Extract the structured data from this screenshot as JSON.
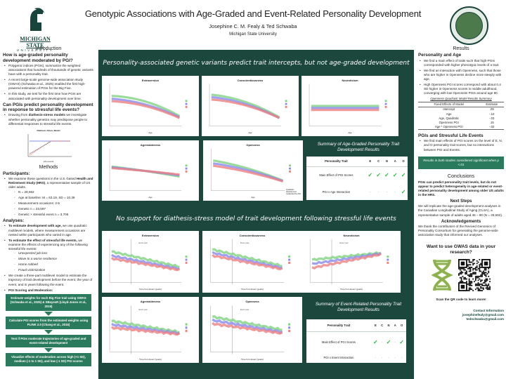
{
  "header": {
    "title": "Genotypic Associations with Age-Graded and Event-Related Personality Development",
    "authors": "Josephine C. M. Fealy & Ted Schwaba",
    "affiliation": "Michigan State University",
    "logo_text": "MICHIGAN STATE",
    "logo_sub": "UNIVERSITY"
  },
  "left": {
    "intro_title": "Introduction",
    "q1": "How is age-graded personality development moderated by PGI?",
    "q1_bullets": [
      "Polygenic indices (PGIs), summarize the weighted associations that hundreds of thousands of genetic variants have with a personality trait.",
      "A recent large-scale genome-wide association study (GWAS) (Schwaba et al., 2025) enabled the first high-powered estimation of PGIs for the Big Five.",
      "In this study, we test for the first time how PGIs are associated with personality development over time."
    ],
    "q2": "Can PGIs predict personality development in response to stressful life events?",
    "q2_pre": "Drawing from ",
    "q2_bold": "diathesis-stress models",
    "q2_post": " we investigate whether personality genetics may predispose people to differential responses to stressful life events.",
    "fig_title": "Diathesis-Stress Model",
    "fig_xlabel": "Life events",
    "methods_title": "Methods",
    "participants_title": "Participants:",
    "p_pre": "We examine these questions in the U.S.-based ",
    "p_bold": "Health and Retirement Study (HRS)",
    "p_post": ", a representative sample of US older adults.",
    "p_sub": [
      "N = 28,662",
      "Age at baseline: M = 63.19, SD = 10.39",
      "Measurement occasions: 2-5",
      "Genetic n = 23,597",
      "Genetic × stressful event n = 3,706"
    ],
    "analyses_title": "Analyses:",
    "a1_bold": "To estimate development with age,",
    "a1_post": " we use quadratic multilevel models, where measurement occasions are nested within participants who varied in age.",
    "a2_bold": "To estimate the effect of stressful life events,",
    "a2_post": " we examine the effects of experiencing any of the following stressful life events:",
    "events": [
      "Unexpected job loss",
      "Move to a worse residence",
      "Home robbed",
      "Fraud victimization"
    ],
    "a3": "We create a three-part multilevel model to estimate the trajectory of trait development before the event, the year of event, and in years following the event.",
    "a4_bold": "PGI Scoring and Moderation:",
    "flow": [
      "Estimate weights for each Big Five trait using GWAS (Schwaba et al., 2025) & SBayesR (Lloyd-Jones et al., 2019)",
      "Calculate PGI scores from the estimated weights using PLINK 2.0 (Chang et al., 2015)",
      "Test if PGIs moderate trajectories of age-graded and event-related development",
      "Visualize effects of moderation across high (+1 SD), medium (-1 to 1 SD), and low (-1 SD) PGI scores"
    ]
  },
  "center": {
    "banner1": "Personality-associated genetic variants predict trait intercepts, but not age-graded development",
    "banner2": "No support for diathesis-stress model of trait development following stressful life events",
    "age_charts": [
      "Extraversion",
      "Conscientiousness",
      "Neuroticism",
      "Agreeableness",
      "Openness"
    ],
    "event_charts": [
      "Extraversion",
      "Conscientiousness",
      "Neuroticism",
      "Agreeableness",
      "Openness"
    ],
    "age_xlabel": "Age",
    "event_xlabel": "Time from Event (years)",
    "event_annot": "Event year",
    "openness_note": "Quadratic development moderated by PGI",
    "summary1_title": "Summary of Age-Graded Personality Trait Development Results",
    "summary2_title": "Summary of Event-Related Personality Trait Development Results",
    "traits": [
      "E",
      "C",
      "N",
      "A",
      "O"
    ],
    "col_header": "Personality Trait",
    "table1": [
      {
        "label": "Main Effect of PGI Scores",
        "vals": [
          "✓",
          "✓",
          "✓",
          "✓",
          "✓"
        ]
      },
      {
        "label": "PGI x Age Interaction",
        "vals": [
          "-",
          "-",
          "-",
          "-",
          "✓"
        ]
      }
    ],
    "table2": [
      {
        "label": "Main Effect of PGI Scores",
        "vals": [
          "✓",
          "-",
          "✓",
          "-",
          "✓"
        ]
      },
      {
        "label": "PGI x Event Interaction",
        "vals": [
          "-",
          "-",
          "-",
          "-",
          "-"
        ]
      }
    ],
    "colors": {
      "high": "#7fd37f",
      "medium": "#8a8aee",
      "low": "#ee8080"
    }
  },
  "right": {
    "results_title": "Results",
    "pa_title": "Personality and Age",
    "pa_bullets": [
      "We find a main effect of traits such that high-PGIs corresponded with higher phenotypic levels of a trait.",
      "We find an interaction with Openness, such that those who are higher in Openness decline more steeply with age.",
      "High Openness PGI scores correspond with about 0.4 SD higher in Openness scores in middle adulthood, converging with low Openness PGIs around age 80."
    ],
    "otable_caption": "Openness Quadratic Model Results Summary",
    "otable_headers": [
      "Fixed Effects of Model",
      "Estimate"
    ],
    "otable_rows": [
      [
        "Intercept",
        ".09"
      ],
      [
        "Age",
        "-.10"
      ],
      [
        "Age, Quadratic",
        "-.03"
      ],
      [
        "Openness PGI",
        ".15"
      ],
      [
        "Age * Openness PGI",
        "-.02"
      ]
    ],
    "pse_title": "PGIs and Stressful Life Events",
    "pse_bullets": [
      "We find main effects of PGI scores on the level of E, N, and O personality trait scores, but no interactions between PGI and Events."
    ],
    "sig_note": "Results in both studies considered significant when p <.01",
    "conclusions_title": "Conclusions",
    "conclusions": "PGIs can predict personality trait levels, but do not appear to predict heterogeneity in age-related or event-related personality development among older US adults in the HRS.",
    "next_title": "Next Steps",
    "next": "We will replicate the age-graded development analyses in the Canadian Longitudinal Study of Aging (CLSA), a representative sample of adults aged 45 – 90 (N = 28,662).",
    "ack_title": "Acknowledgements",
    "ack": "We thank the contributors of the Revived Genomics of Personality Consortium for generating the genome-wide association study that informed our analyses.",
    "gwas_title": "Want to use GWAS data in your research?",
    "scan": "Scan the QR code to learn more!",
    "contact_title": "Contact Information",
    "emails": [
      "josephinefealy@gmail.com",
      "tedschwaba@gmail.com"
    ]
  }
}
